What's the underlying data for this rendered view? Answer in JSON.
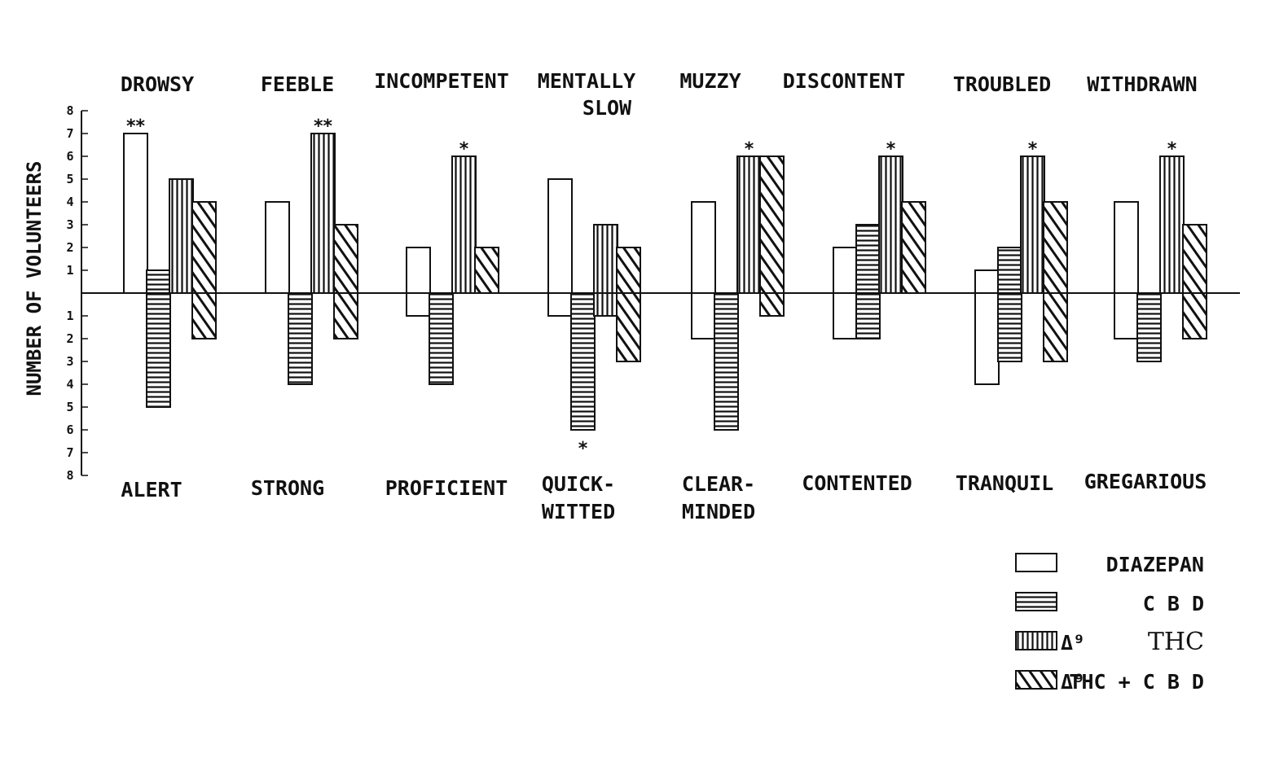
{
  "chart_data": {
    "type": "bar",
    "ylabel": "NUMBER OF VOLUNTEERS",
    "ylim": [
      -8,
      8
    ],
    "yticks_up": [
      "1",
      "2",
      "3",
      "4",
      "5",
      "6",
      "7",
      "8"
    ],
    "yticks_down": [
      "1",
      "2",
      "3",
      "4",
      "5",
      "6",
      "7",
      "8"
    ],
    "categories_top": [
      "DROWSY",
      "FEEBLE",
      "INCOMPETENT",
      "MENTALLY SLOW",
      "MUZZY",
      "DISCONTENT",
      "TROUBLED",
      "WITHDRAWN"
    ],
    "categories_bottom": [
      "ALERT",
      "STRONG",
      "PROFICIENT",
      "QUICK-WITTED",
      "CLEAR-MINDED",
      "CONTENTED",
      "TRANQUIL",
      "GREGARIOUS"
    ],
    "series": [
      {
        "name": "DIAZEPAN",
        "pattern": "open",
        "up": [
          7,
          4,
          2,
          5,
          4,
          2,
          1,
          4
        ],
        "down": [
          0,
          0,
          1,
          1,
          2,
          2,
          4,
          2
        ]
      },
      {
        "name": "C B D",
        "pattern": "horizontal",
        "up": [
          1,
          0,
          0,
          0,
          0,
          3,
          2,
          0
        ],
        "down": [
          5,
          4,
          4,
          6,
          6,
          2,
          3,
          3
        ]
      },
      {
        "name": "THC",
        "pattern": "vertical",
        "prefix": "Δ⁹",
        "up": [
          5,
          7,
          6,
          3,
          6,
          6,
          6,
          6
        ],
        "down": [
          0,
          0,
          0,
          1,
          0,
          0,
          0,
          0
        ]
      },
      {
        "name": "THC + C B D",
        "pattern": "diagonal",
        "prefix": "Δ⁹",
        "up": [
          4,
          3,
          2,
          2,
          6,
          4,
          4,
          3
        ],
        "down": [
          2,
          2,
          0,
          3,
          1,
          0,
          3,
          2
        ]
      }
    ],
    "significance": [
      {
        "category": "DROWSY",
        "series": "DIAZEPAN",
        "mark": "**",
        "side": "up"
      },
      {
        "category": "FEEBLE",
        "series": "THC",
        "mark": "**",
        "side": "up"
      },
      {
        "category": "INCOMPETENT",
        "series": "THC",
        "mark": "*",
        "side": "up"
      },
      {
        "category": "MUZZY",
        "series": "THC",
        "mark": "*",
        "side": "up"
      },
      {
        "category": "DISCONTENT",
        "series": "THC",
        "mark": "*",
        "side": "up"
      },
      {
        "category": "TROUBLED",
        "series": "THC",
        "mark": "*",
        "side": "up"
      },
      {
        "category": "WITHDRAWN",
        "series": "THC",
        "mark": "*",
        "side": "up"
      },
      {
        "category": "QUICK-WITTED",
        "series": "C B D",
        "mark": "*",
        "side": "down"
      }
    ],
    "legend": {
      "position": "bottom-right",
      "entries": [
        {
          "label": "DIAZEPAN",
          "pattern": "open"
        },
        {
          "label": "C B D",
          "pattern": "horizontal"
        },
        {
          "prefix": "Δ⁹",
          "label": "THC",
          "pattern": "vertical"
        },
        {
          "prefix": "Δ⁹",
          "label": "THC + C B D",
          "pattern": "diagonal"
        }
      ]
    },
    "colors": {
      "ink": "#111111",
      "background": "#ffffff"
    }
  }
}
